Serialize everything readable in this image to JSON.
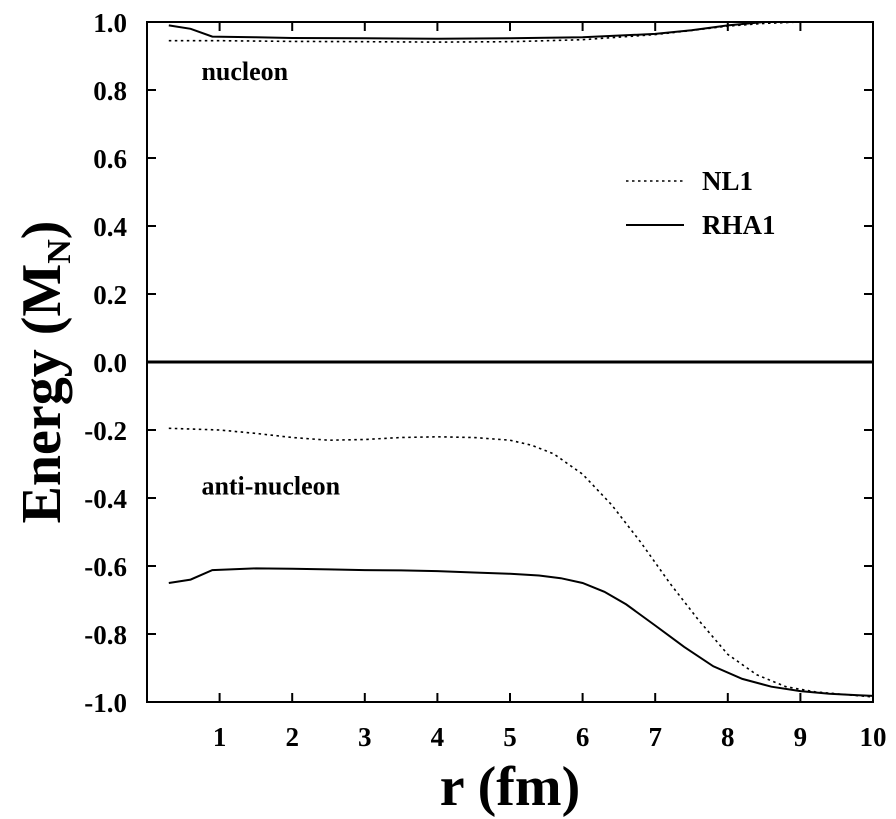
{
  "chart_data": {
    "type": "line",
    "xlabel": "r (fm)",
    "ylabel_main": "Energy (M",
    "ylabel_sub": "N",
    "ylabel_close": ")",
    "xlim": [
      0,
      10
    ],
    "ylim": [
      -1.0,
      1.0
    ],
    "xticks": [
      1,
      2,
      3,
      4,
      5,
      6,
      7,
      8,
      9,
      10
    ],
    "yticks": [
      1.0,
      0.8,
      0.6,
      0.4,
      0.2,
      0.0,
      -0.2,
      -0.4,
      -0.6,
      -0.8,
      -1.0
    ],
    "ytick_labels": [
      "1.0",
      "0.8",
      "0.6",
      "0.4",
      "0.2",
      "0.0",
      "-0.2",
      "-0.4",
      "-0.6",
      "-0.8",
      "-1.0"
    ],
    "zero_line": 0.0,
    "grid": false,
    "legend_position": "right, upper half",
    "annotations": [
      {
        "text": "nucleon",
        "x": 0.75,
        "y": 0.83
      },
      {
        "text": "anti-nucleon",
        "x": 0.75,
        "y": -0.39
      }
    ],
    "series": [
      {
        "name": "NL1",
        "style": "dotted",
        "branch": "nucleon",
        "x": [
          0.3,
          1.0,
          2.0,
          3.0,
          4.0,
          5.0,
          6.0,
          7.0,
          7.5,
          8.0,
          8.5,
          9.0,
          10.0
        ],
        "y": [
          0.945,
          0.945,
          0.943,
          0.942,
          0.941,
          0.942,
          0.948,
          0.963,
          0.975,
          0.988,
          0.996,
          1.0,
          1.0
        ]
      },
      {
        "name": "NL1",
        "style": "dotted",
        "branch": "anti-nucleon",
        "x": [
          0.3,
          1.0,
          1.5,
          2.0,
          2.5,
          3.0,
          3.5,
          4.0,
          4.5,
          5.0,
          5.3,
          5.6,
          6.0,
          6.4,
          6.8,
          7.2,
          7.6,
          8.0,
          8.4,
          8.8,
          9.2,
          9.6,
          10.0
        ],
        "y": [
          -0.195,
          -0.2,
          -0.21,
          -0.222,
          -0.23,
          -0.228,
          -0.222,
          -0.22,
          -0.222,
          -0.23,
          -0.245,
          -0.27,
          -0.33,
          -0.42,
          -0.53,
          -0.65,
          -0.76,
          -0.86,
          -0.92,
          -0.955,
          -0.97,
          -0.978,
          -0.985
        ]
      },
      {
        "name": "RHA1",
        "style": "solid",
        "branch": "nucleon",
        "x": [
          0.3,
          0.6,
          0.9,
          1.5,
          2.0,
          3.0,
          4.0,
          5.0,
          6.0,
          7.0,
          7.5,
          8.0,
          8.5,
          10.0
        ],
        "y": [
          0.99,
          0.98,
          0.957,
          0.955,
          0.953,
          0.952,
          0.951,
          0.952,
          0.955,
          0.965,
          0.976,
          0.99,
          1.0,
          1.0
        ]
      },
      {
        "name": "RHA1",
        "style": "solid",
        "branch": "anti-nucleon",
        "x": [
          0.3,
          0.6,
          0.9,
          1.5,
          2.0,
          2.5,
          3.0,
          3.5,
          4.0,
          4.5,
          5.0,
          5.4,
          5.7,
          6.0,
          6.3,
          6.6,
          7.0,
          7.4,
          7.8,
          8.2,
          8.6,
          9.0,
          9.4,
          9.8,
          10.0
        ],
        "y": [
          -0.65,
          -0.64,
          -0.612,
          -0.607,
          -0.608,
          -0.61,
          -0.612,
          -0.613,
          -0.615,
          -0.619,
          -0.623,
          -0.628,
          -0.636,
          -0.65,
          -0.676,
          -0.713,
          -0.775,
          -0.838,
          -0.895,
          -0.932,
          -0.955,
          -0.968,
          -0.976,
          -0.98,
          -0.982
        ]
      }
    ],
    "legend": [
      {
        "label": "NL1",
        "style": "dotted"
      },
      {
        "label": "RHA1",
        "style": "solid"
      }
    ]
  }
}
